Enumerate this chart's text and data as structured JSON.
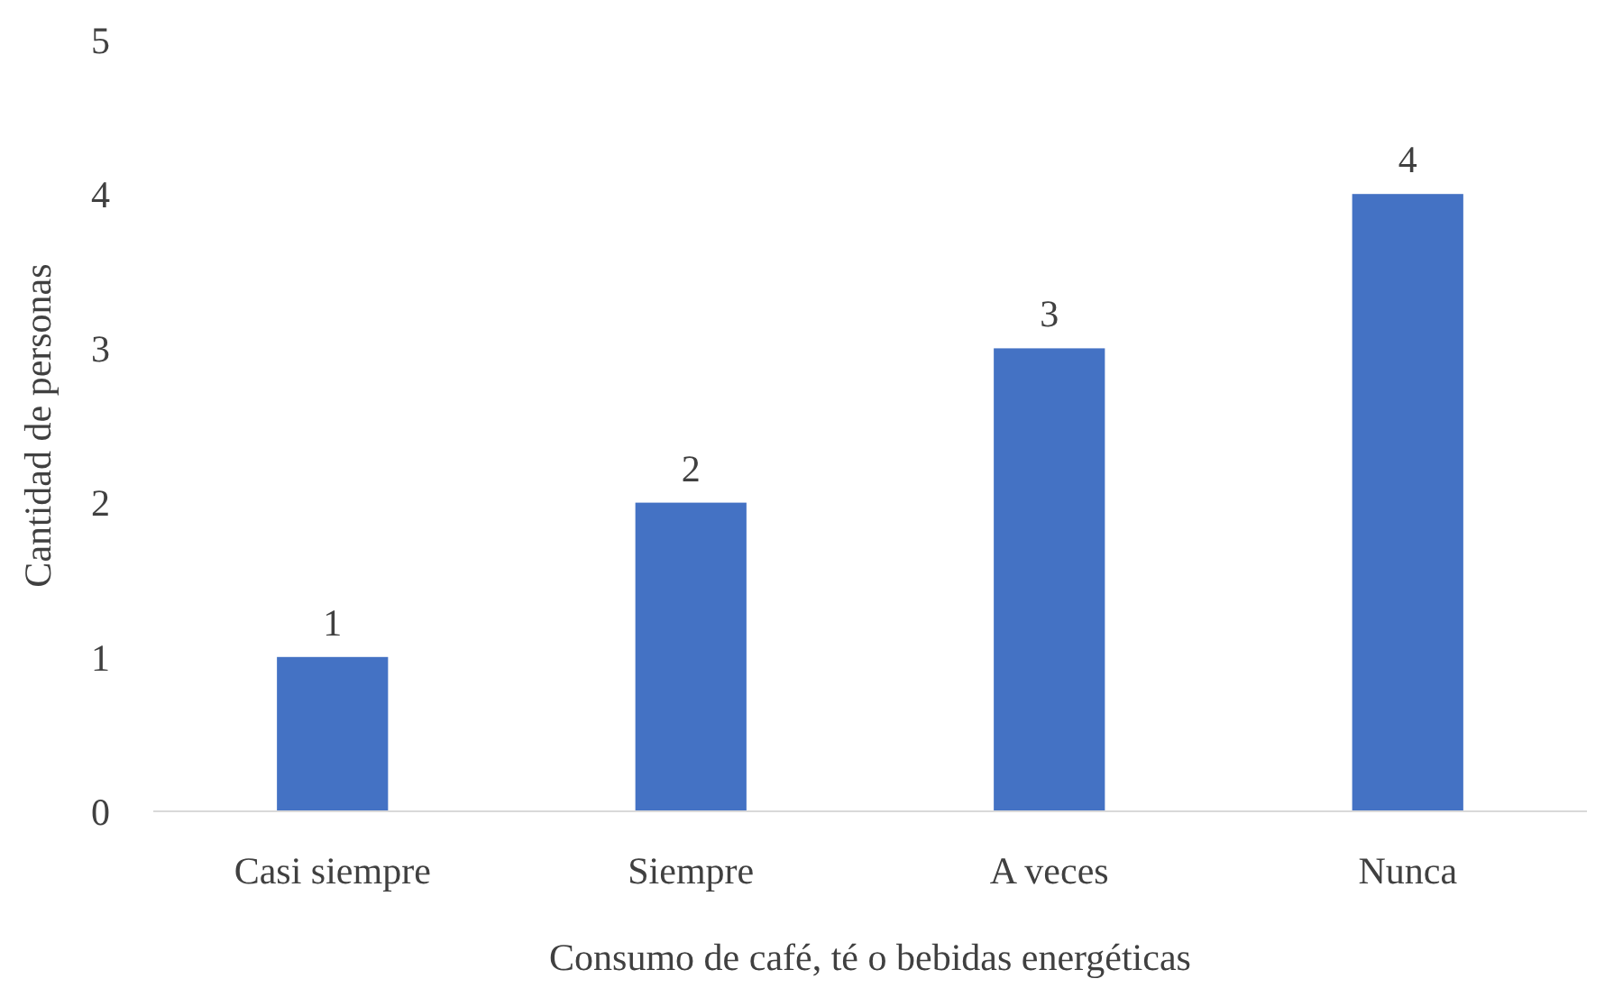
{
  "chart_data": {
    "type": "bar",
    "xlabel": "Consumo de café, té o bebidas energéticas",
    "ylabel": "Cantidad de personas",
    "categories": [
      "Casi siempre",
      "Siempre",
      "A veces",
      "Nunca"
    ],
    "values": [
      1,
      2,
      3,
      4
    ],
    "color": "#4472c4",
    "ylim": [
      0,
      5
    ],
    "yticks": [
      0,
      1,
      2,
      3,
      4,
      5
    ],
    "data_labels": true
  }
}
